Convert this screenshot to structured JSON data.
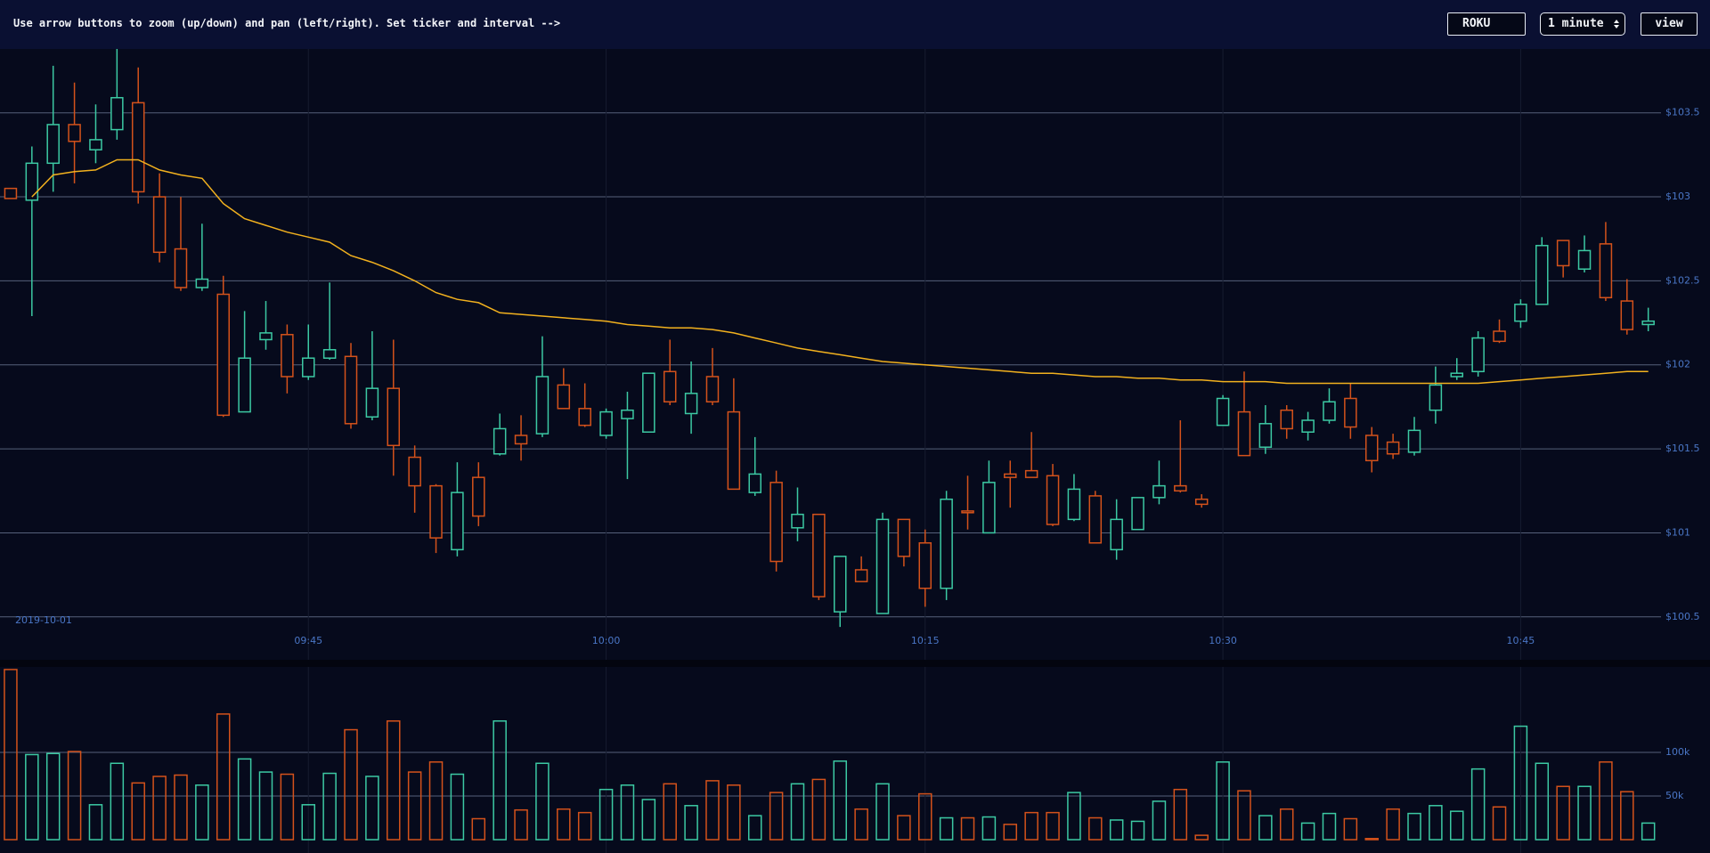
{
  "header": {
    "instructions": "Use arrow buttons to zoom (up/down) and pan (left/right). Set ticker and interval -->",
    "ticker": "ROKU",
    "interval": "1 minute",
    "button": "view"
  },
  "chart_data": [
    {
      "type": "candlestick",
      "date_label": "2019-10-01",
      "up_color": "#3cc9a3",
      "down_color": "#d4521b",
      "ma_color": "#f2b11e",
      "grid": true,
      "xlim": [
        -0.5,
        77.6
      ],
      "xticks": [
        {
          "value": 14,
          "label": "09:45"
        },
        {
          "value": 28,
          "label": "10:00"
        },
        {
          "value": 43,
          "label": "10:15"
        },
        {
          "value": 57,
          "label": "10:30"
        },
        {
          "value": 71,
          "label": "10:45"
        }
      ],
      "ylim": [
        100.43,
        103.88
      ],
      "yticks": [
        {
          "value": 100.5,
          "label": "$100.5"
        },
        {
          "value": 101,
          "label": "$101"
        },
        {
          "value": 101.5,
          "label": "$101.5"
        },
        {
          "value": 102,
          "label": "$102"
        },
        {
          "value": 102.5,
          "label": "$102.5"
        },
        {
          "value": 103,
          "label": "$103"
        },
        {
          "value": 103.5,
          "label": "$103.5"
        }
      ],
      "open": [
        103.05,
        102.98,
        103.2,
        103.43,
        103.28,
        103.4,
        103.56,
        103.0,
        102.69,
        102.46,
        102.42,
        101.72,
        102.15,
        102.18,
        101.93,
        102.04,
        102.05,
        101.69,
        101.86,
        101.45,
        101.28,
        100.9,
        101.33,
        101.47,
        101.58,
        101.59,
        101.88,
        101.74,
        101.58,
        101.68,
        101.6,
        101.96,
        101.71,
        101.93,
        101.72,
        101.24,
        101.3,
        101.03,
        101.11,
        100.53,
        100.78,
        100.52,
        101.08,
        100.94,
        100.67,
        101.13,
        101.0,
        101.35,
        101.37,
        101.34,
        101.08,
        101.22,
        100.9,
        101.02,
        101.21,
        101.28,
        101.2,
        101.64,
        101.72,
        101.51,
        101.73,
        101.6,
        101.67,
        101.8,
        101.58,
        101.54,
        101.48,
        101.73,
        101.93,
        101.96,
        102.2,
        102.26,
        102.36,
        102.74,
        102.57,
        102.72,
        102.38,
        102.24
      ],
      "high": [
        103.05,
        103.3,
        103.78,
        103.68,
        103.55,
        103.88,
        103.77,
        103.14,
        103.0,
        102.84,
        102.53,
        102.32,
        102.38,
        102.24,
        102.24,
        102.49,
        102.13,
        102.2,
        102.15,
        101.52,
        101.29,
        101.42,
        101.42,
        101.71,
        101.7,
        102.17,
        101.98,
        101.89,
        101.74,
        101.84,
        101.95,
        102.15,
        102.02,
        102.1,
        101.92,
        101.57,
        101.37,
        101.27,
        101.11,
        100.86,
        100.86,
        101.12,
        101.08,
        101.02,
        101.25,
        101.34,
        101.43,
        101.43,
        101.6,
        101.41,
        101.35,
        101.25,
        101.2,
        101.21,
        101.43,
        101.67,
        101.23,
        101.82,
        101.96,
        101.76,
        101.76,
        101.72,
        101.86,
        101.89,
        101.63,
        101.59,
        101.69,
        101.99,
        102.04,
        102.2,
        102.27,
        102.39,
        102.76,
        102.74,
        102.77,
        102.85,
        102.51,
        102.34
      ],
      "low": [
        102.99,
        102.29,
        103.03,
        103.08,
        103.2,
        103.34,
        102.96,
        102.61,
        102.44,
        102.44,
        101.69,
        101.72,
        102.09,
        101.83,
        101.91,
        102.03,
        101.62,
        101.67,
        101.34,
        101.12,
        100.88,
        100.86,
        101.04,
        101.46,
        101.43,
        101.57,
        101.74,
        101.63,
        101.56,
        101.32,
        101.6,
        101.76,
        101.59,
        101.76,
        101.26,
        101.22,
        100.77,
        100.95,
        100.6,
        100.44,
        100.71,
        100.52,
        100.8,
        100.56,
        100.6,
        101.02,
        101.0,
        101.15,
        101.33,
        101.04,
        101.07,
        100.94,
        100.84,
        101.02,
        101.17,
        101.24,
        101.15,
        101.64,
        101.46,
        101.47,
        101.56,
        101.55,
        101.65,
        101.56,
        101.36,
        101.44,
        101.46,
        101.65,
        101.91,
        101.93,
        102.13,
        102.22,
        102.36,
        102.52,
        102.55,
        102.38,
        102.18,
        102.2
      ],
      "close": [
        102.99,
        103.2,
        103.43,
        103.33,
        103.34,
        103.59,
        103.03,
        102.67,
        102.46,
        102.51,
        101.7,
        102.04,
        102.19,
        101.93,
        102.04,
        102.09,
        101.65,
        101.86,
        101.52,
        101.28,
        100.97,
        101.24,
        101.1,
        101.62,
        101.53,
        101.93,
        101.74,
        101.64,
        101.72,
        101.73,
        101.95,
        101.78,
        101.83,
        101.78,
        101.26,
        101.35,
        100.83,
        101.11,
        100.62,
        100.86,
        100.71,
        101.08,
        100.86,
        100.67,
        101.2,
        101.12,
        101.3,
        101.33,
        101.33,
        101.05,
        101.26,
        100.94,
        101.08,
        101.21,
        101.28,
        101.25,
        101.17,
        101.8,
        101.46,
        101.65,
        101.62,
        101.67,
        101.78,
        101.63,
        101.43,
        101.47,
        101.61,
        101.88,
        101.95,
        102.16,
        102.14,
        102.36,
        102.71,
        102.59,
        102.68,
        102.4,
        102.21,
        102.26
      ],
      "ma": [
        null,
        103.0,
        103.13,
        103.15,
        103.16,
        103.22,
        103.22,
        103.16,
        103.13,
        103.11,
        102.96,
        102.87,
        102.83,
        102.79,
        102.76,
        102.73,
        102.65,
        102.61,
        102.56,
        102.5,
        102.43,
        102.39,
        102.37,
        102.31,
        102.3,
        102.29,
        102.28,
        102.27,
        102.26,
        102.24,
        102.23,
        102.22,
        102.22,
        102.21,
        102.19,
        102.16,
        102.13,
        102.1,
        102.08,
        102.06,
        102.04,
        102.02,
        102.01,
        102.0,
        101.99,
        101.98,
        101.97,
        101.96,
        101.95,
        101.95,
        101.94,
        101.93,
        101.93,
        101.92,
        101.92,
        101.91,
        101.91,
        101.9,
        101.9,
        101.9,
        101.89,
        101.89,
        101.89,
        101.89,
        101.89,
        101.89,
        101.89,
        101.89,
        101.89,
        101.89,
        101.9,
        101.91,
        101.92,
        101.93,
        101.94,
        101.95,
        101.96,
        101.96
      ]
    },
    {
      "type": "volume",
      "grid": true,
      "xlim": [
        -0.5,
        77.6
      ],
      "ylim": [
        0,
        198000
      ],
      "yticks": [
        {
          "value": 50000,
          "label": "50k"
        },
        {
          "value": 100000,
          "label": "100k"
        }
      ],
      "values": [
        195000,
        97500,
        98750,
        101000,
        40000,
        87500,
        65000,
        72500,
        74000,
        62500,
        144000,
        92500,
        77500,
        75000,
        40000,
        76000,
        126000,
        72500,
        136000,
        77500,
        89000,
        75000,
        24000,
        136000,
        34000,
        87500,
        35000,
        31000,
        57500,
        62500,
        46000,
        64000,
        39000,
        67500,
        62500,
        27500,
        54000,
        64000,
        69000,
        90000,
        35000,
        64000,
        27500,
        52500,
        25000,
        25000,
        26000,
        17500,
        31000,
        31000,
        54000,
        25000,
        22500,
        21000,
        44000,
        57500,
        5000,
        89000,
        56000,
        27500,
        35000,
        19000,
        30000,
        24000,
        1250,
        35000,
        30000,
        39000,
        32500,
        81000,
        37500,
        130000,
        87500,
        61000,
        61000,
        89000,
        55000,
        19000
      ]
    }
  ]
}
